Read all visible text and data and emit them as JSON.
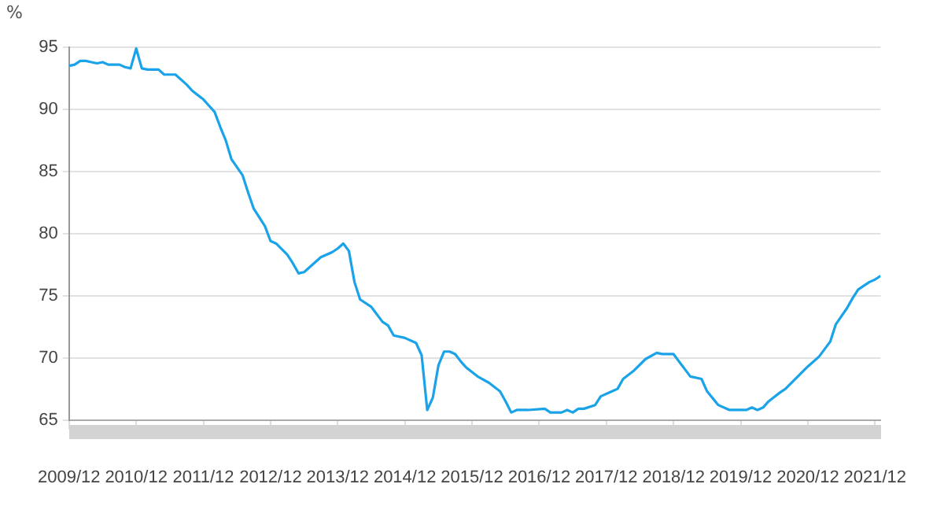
{
  "chart_data": {
    "type": "line",
    "ylabel": "%",
    "color": "#1aa3e8",
    "x": [
      "2009-12",
      "2010-01",
      "2010-02",
      "2010-03",
      "2010-04",
      "2010-05",
      "2010-06",
      "2010-07",
      "2010-09",
      "2010-10",
      "2010-11",
      "2010-12",
      "2011-01",
      "2011-02",
      "2011-04",
      "2011-05",
      "2011-07",
      "2011-09",
      "2011-10",
      "2011-12",
      "2012-01",
      "2012-02",
      "2012-03",
      "2012-04",
      "2012-05",
      "2012-07",
      "2012-08",
      "2012-09",
      "2012-11",
      "2012-12",
      "2013-01",
      "2013-03",
      "2013-04",
      "2013-05",
      "2013-06",
      "2013-09",
      "2013-11",
      "2013-12",
      "2014-01",
      "2014-02",
      "2014-03",
      "2014-04",
      "2014-06",
      "2014-08",
      "2014-09",
      "2014-10",
      "2014-12",
      "2015-02",
      "2015-03",
      "2015-04",
      "2015-05",
      "2015-06",
      "2015-07",
      "2015-08",
      "2015-09",
      "2015-10",
      "2015-11",
      "2016-01",
      "2016-03",
      "2016-05",
      "2016-06",
      "2016-07",
      "2016-08",
      "2016-10",
      "2017-01",
      "2017-02",
      "2017-04",
      "2017-05",
      "2017-06",
      "2017-07",
      "2017-08",
      "2017-10",
      "2017-11",
      "2018-01",
      "2018-02",
      "2018-03",
      "2018-05",
      "2018-07",
      "2018-09",
      "2018-10",
      "2018-12",
      "2019-02",
      "2019-03",
      "2019-05",
      "2019-06",
      "2019-08",
      "2019-10",
      "2020-01",
      "2020-02",
      "2020-03",
      "2020-04",
      "2020-05",
      "2020-07",
      "2020-08",
      "2020-10",
      "2020-12",
      "2021-02",
      "2021-04",
      "2021-05",
      "2021-07",
      "2021-08",
      "2021-09",
      "2021-11",
      "2021-12",
      "2022-01"
    ],
    "values": [
      93.5,
      93.6,
      93.9,
      93.9,
      93.8,
      93.7,
      93.8,
      93.6,
      93.6,
      93.4,
      93.3,
      94.9,
      93.3,
      93.2,
      93.2,
      92.8,
      92.8,
      92.0,
      91.5,
      90.8,
      90.3,
      89.8,
      88.6,
      87.5,
      86.0,
      84.7,
      83.3,
      82.0,
      80.6,
      79.4,
      79.2,
      78.3,
      77.6,
      76.8,
      76.9,
      78.1,
      78.5,
      78.8,
      79.2,
      78.6,
      76.1,
      74.7,
      74.1,
      72.9,
      72.6,
      71.8,
      71.6,
      71.2,
      70.2,
      65.8,
      66.8,
      69.4,
      70.5,
      70.5,
      70.3,
      69.7,
      69.2,
      68.5,
      68.0,
      67.3,
      66.5,
      65.6,
      65.8,
      65.8,
      65.9,
      65.6,
      65.6,
      65.8,
      65.6,
      65.9,
      65.9,
      66.2,
      66.9,
      67.3,
      67.5,
      68.3,
      69.0,
      69.9,
      70.4,
      70.3,
      70.3,
      69.1,
      68.5,
      68.3,
      67.3,
      66.2,
      65.8,
      65.8,
      66.0,
      65.8,
      66.0,
      66.5,
      67.2,
      67.5,
      68.4,
      69.3,
      70.1,
      71.3,
      72.7,
      74.0,
      74.8,
      75.5,
      76.1,
      76.3,
      76.6
    ],
    "xlim": [
      "2009-12",
      "2022-01"
    ],
    "xticks": [
      {
        "value": "2009-12",
        "label": "2009/12"
      },
      {
        "value": "2010-12",
        "label": "2010/12"
      },
      {
        "value": "2011-12",
        "label": "2011/12"
      },
      {
        "value": "2012-12",
        "label": "2012/12"
      },
      {
        "value": "2013-12",
        "label": "2013/12"
      },
      {
        "value": "2014-12",
        "label": "2014/12"
      },
      {
        "value": "2015-12",
        "label": "2015/12"
      },
      {
        "value": "2016-12",
        "label": "2016/12"
      },
      {
        "value": "2017-12",
        "label": "2017/12"
      },
      {
        "value": "2018-12",
        "label": "2018/12"
      },
      {
        "value": "2019-12",
        "label": "2019/12"
      },
      {
        "value": "2020-12",
        "label": "2020/12"
      },
      {
        "value": "2021-12",
        "label": "2021/12"
      }
    ],
    "ylim": [
      65,
      95
    ],
    "yticks": [
      65,
      70,
      75,
      80,
      85,
      90,
      95
    ],
    "grid": "y",
    "legend": false,
    "marker": "none",
    "line_style": "solid"
  }
}
